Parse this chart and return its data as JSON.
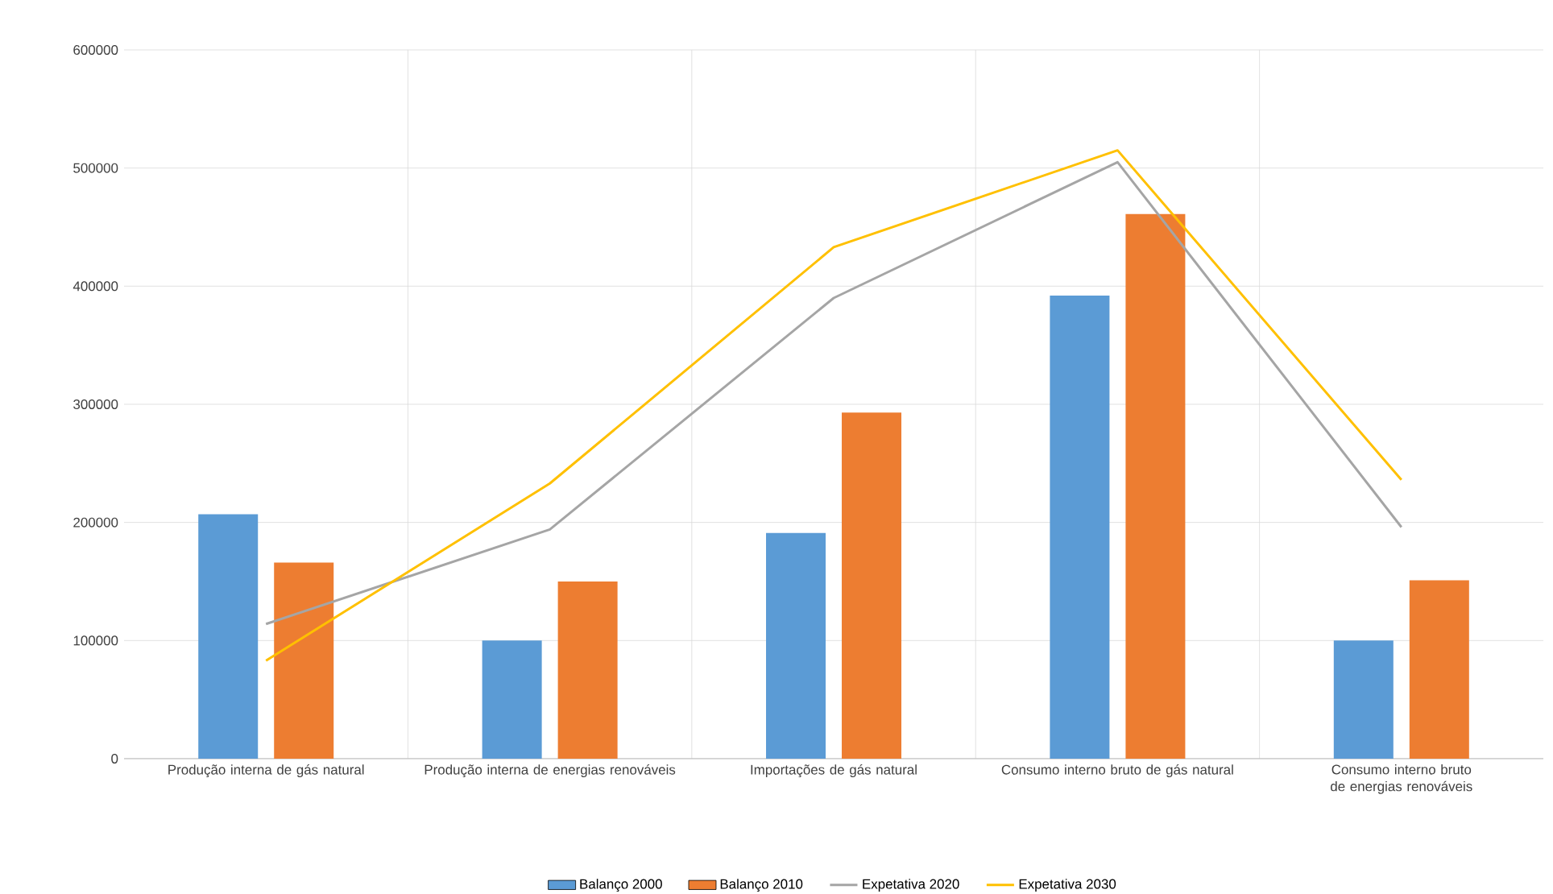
{
  "chart_data": {
    "type": "bar",
    "categories": [
      "Produção interna de gás natural",
      "Produção interna de energias renováveis",
      "Importações de gás natural",
      "Consumo interno bruto de gás natural",
      "Consumo interno bruto de energias renováveis"
    ],
    "series": [
      {
        "name": "Balanço 2000",
        "color": "#5b9bd5",
        "values": [
          207000,
          100000,
          191000,
          392000,
          100000
        ]
      },
      {
        "name": "Balanço 2010",
        "color": "#ed7d31",
        "values": [
          166000,
          150000,
          293000,
          461000,
          151000
        ]
      },
      {
        "name": "Expetativa 2020",
        "type": "line",
        "color": "#a5a5a5",
        "values": [
          114000,
          194000,
          390000,
          505000,
          196000
        ]
      },
      {
        "name": "Expetativa 2030",
        "type": "line",
        "color": "#ffc000",
        "values": [
          83000,
          233000,
          433000,
          515000,
          236000
        ]
      }
    ],
    "ylim": [
      0,
      600000
    ],
    "yticks": [
      0,
      100000,
      200000,
      300000,
      400000,
      500000,
      600000
    ],
    "grid": true,
    "legend": "bottom",
    "marker": "none"
  }
}
